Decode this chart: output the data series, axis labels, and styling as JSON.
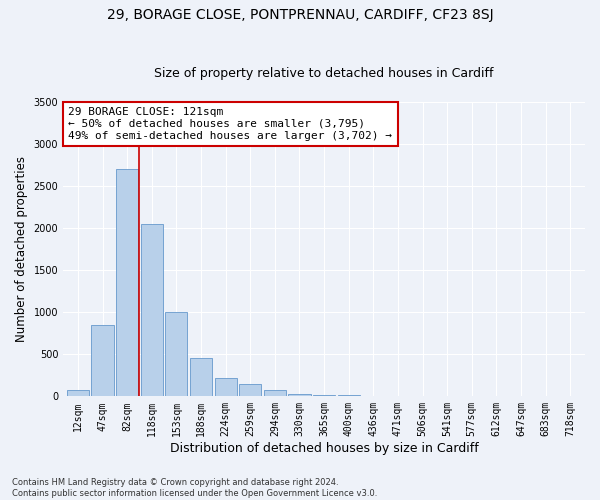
{
  "title_line1": "29, BORAGE CLOSE, PONTPRENNAU, CARDIFF, CF23 8SJ",
  "title_line2": "Size of property relative to detached houses in Cardiff",
  "xlabel": "Distribution of detached houses by size in Cardiff",
  "ylabel": "Number of detached properties",
  "footnote": "Contains HM Land Registry data © Crown copyright and database right 2024.\nContains public sector information licensed under the Open Government Licence v3.0.",
  "bar_labels": [
    "12sqm",
    "47sqm",
    "82sqm",
    "118sqm",
    "153sqm",
    "188sqm",
    "224sqm",
    "259sqm",
    "294sqm",
    "330sqm",
    "365sqm",
    "400sqm",
    "436sqm",
    "471sqm",
    "506sqm",
    "541sqm",
    "577sqm",
    "612sqm",
    "647sqm",
    "683sqm",
    "718sqm"
  ],
  "bar_values": [
    75,
    850,
    2700,
    2050,
    1000,
    450,
    220,
    150,
    75,
    30,
    20,
    10,
    5,
    3,
    2,
    1,
    1,
    0,
    0,
    0,
    0
  ],
  "bar_color": "#b8d0ea",
  "bar_edge_color": "#6699cc",
  "vline_color": "#cc0000",
  "vline_x_index": 3,
  "annotation_text": "29 BORAGE CLOSE: 121sqm\n← 50% of detached houses are smaller (3,795)\n49% of semi-detached houses are larger (3,702) →",
  "annotation_box_color": "white",
  "annotation_box_edge_color": "#cc0000",
  "ylim": [
    0,
    3500
  ],
  "yticks": [
    0,
    500,
    1000,
    1500,
    2000,
    2500,
    3000,
    3500
  ],
  "bg_color": "#eef2f9",
  "plot_bg_color": "#eef2f9",
  "title1_fontsize": 10,
  "title2_fontsize": 9,
  "annotation_fontsize": 8,
  "xlabel_fontsize": 9,
  "ylabel_fontsize": 8.5,
  "tick_fontsize": 7,
  "footnote_fontsize": 6
}
